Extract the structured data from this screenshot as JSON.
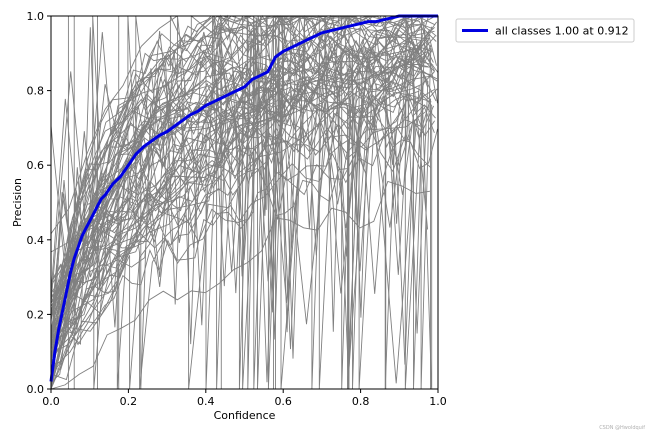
{
  "chart_data": {
    "type": "line",
    "title": "",
    "xlabel": "Confidence",
    "ylabel": "Precision",
    "xlim": [
      0,
      1
    ],
    "ylim": [
      0,
      1
    ],
    "xticks": [
      "0.0",
      "0.2",
      "0.4",
      "0.6",
      "0.8",
      "1.0"
    ],
    "yticks": [
      "0.0",
      "0.2",
      "0.4",
      "0.6",
      "0.8",
      "1.0"
    ],
    "grid": false,
    "legend_position": "outside-top-right",
    "colors": {
      "per_class": "#808080",
      "all_classes": "#0000e0"
    },
    "series": [
      {
        "name": "all classes 1.00 at 0.912",
        "x": [
          0.0,
          0.01,
          0.02,
          0.03,
          0.04,
          0.05,
          0.06,
          0.07,
          0.08,
          0.09,
          0.1,
          0.11,
          0.12,
          0.13,
          0.14,
          0.16,
          0.18,
          0.2,
          0.22,
          0.24,
          0.26,
          0.28,
          0.3,
          0.32,
          0.34,
          0.36,
          0.38,
          0.4,
          0.42,
          0.44,
          0.46,
          0.48,
          0.5,
          0.52,
          0.54,
          0.56,
          0.58,
          0.6,
          0.62,
          0.64,
          0.66,
          0.68,
          0.7,
          0.72,
          0.74,
          0.76,
          0.78,
          0.8,
          0.82,
          0.84,
          0.86,
          0.88,
          0.9,
          0.912,
          0.95,
          1.0
        ],
        "y": [
          0.02,
          0.1,
          0.16,
          0.21,
          0.26,
          0.31,
          0.35,
          0.38,
          0.41,
          0.43,
          0.45,
          0.47,
          0.49,
          0.51,
          0.52,
          0.55,
          0.57,
          0.6,
          0.63,
          0.65,
          0.665,
          0.68,
          0.69,
          0.705,
          0.72,
          0.735,
          0.745,
          0.76,
          0.77,
          0.78,
          0.79,
          0.8,
          0.81,
          0.83,
          0.84,
          0.85,
          0.89,
          0.905,
          0.915,
          0.925,
          0.935,
          0.945,
          0.955,
          0.96,
          0.965,
          0.97,
          0.975,
          0.98,
          0.985,
          0.985,
          0.99,
          0.995,
          1.0,
          1.0,
          1.0,
          1.0
        ]
      }
    ]
  },
  "watermark": "CSDN @Hwoldquif"
}
